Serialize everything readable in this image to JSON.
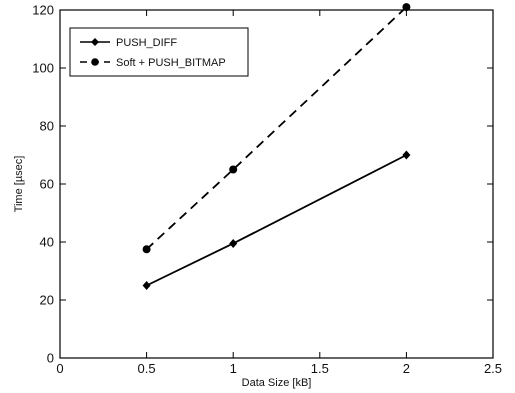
{
  "chart_data": {
    "type": "line",
    "xlabel": "Data Size [kB]",
    "ylabel": "Time [µsec]",
    "xlim": [
      0,
      2.5
    ],
    "ylim": [
      0,
      120
    ],
    "xticks": [
      "0",
      "0.5",
      "1",
      "1.5",
      "2",
      "2.5"
    ],
    "yticks": [
      "0",
      "20",
      "40",
      "60",
      "80",
      "100",
      "120"
    ],
    "grid": false,
    "legend": "top-left",
    "series": [
      {
        "name": "PUSH_DIFF",
        "style": "solid",
        "marker": "diamond",
        "x": [
          0.5,
          1,
          2
        ],
        "y": [
          25,
          39.5,
          70
        ]
      },
      {
        "name": "Soft + PUSH_BITMAP",
        "style": "dashed",
        "marker": "circle",
        "x": [
          0.5,
          1,
          2
        ],
        "y": [
          37.5,
          65,
          121
        ]
      }
    ]
  }
}
